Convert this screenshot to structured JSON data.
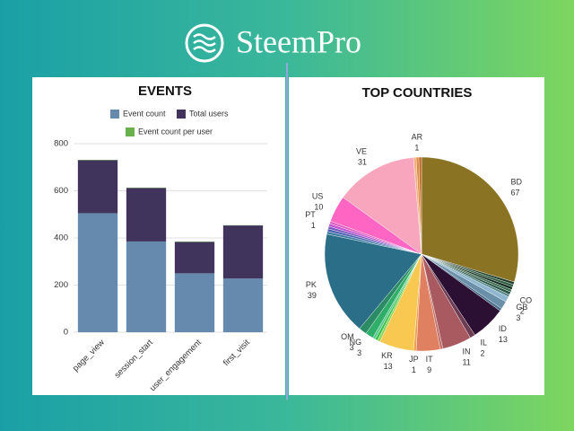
{
  "brand": "SteemPro",
  "chart_data": [
    {
      "type": "bar",
      "stacked": true,
      "title": "EVENTS",
      "categories": [
        "page_view",
        "session_start",
        "user_engagement",
        "first_visit"
      ],
      "series": [
        {
          "name": "Event count",
          "color": "#6689ae",
          "values": [
            505,
            385,
            250,
            228
          ]
        },
        {
          "name": "Total users",
          "color": "#41345c",
          "values": [
            225,
            227,
            133,
            225
          ]
        },
        {
          "name": "Event count per user",
          "color": "#6ab04c",
          "values": [
            1.4,
            1.6,
            1.5,
            1.0
          ]
        }
      ],
      "ylim": [
        0,
        800
      ],
      "yticks": [
        0,
        200,
        400,
        600,
        800
      ],
      "grid": true
    },
    {
      "type": "pie",
      "title": "TOP COUNTRIES",
      "categories": [
        "BD",
        null,
        null,
        null,
        null,
        null,
        null,
        "CO",
        "GB",
        null,
        "ID",
        "IL",
        "IN",
        null,
        "IT",
        "JP",
        "KR",
        null,
        null,
        null,
        "NG",
        "OM",
        "PK",
        null,
        null,
        null,
        "PT",
        null,
        "US",
        "VE",
        null,
        "AR",
        null
      ],
      "values": [
        67,
        1,
        1,
        1,
        1,
        1,
        1,
        2,
        3,
        1,
        13,
        2,
        11,
        1,
        9,
        1,
        13,
        1,
        1,
        1,
        3,
        3,
        39,
        1,
        1,
        1,
        1,
        1,
        10,
        31,
        1,
        1,
        1
      ],
      "colors": [
        "#8a7424",
        "#1f3b2a",
        "#2c5a3e",
        "#0f2a1c",
        "#3d6e52",
        "#245041",
        "#5b8a8a",
        "#8fb8d0",
        "#6a8fa8",
        "#4a6e8a",
        "#2c1034",
        "#6b3c52",
        "#a85a60",
        "#c07068",
        "#df8060",
        "#f0a04a",
        "#f8c850",
        "#8fd45a",
        "#36c24a",
        "#5ac88a",
        "#2fae6a",
        "#2a8b64",
        "#2a6e87",
        "#3a7aa0",
        "#4a5fb0",
        "#7a5ac0",
        "#c050d0",
        "#e060c0",
        "#ff66c4",
        "#f8a6bd",
        "#f0b080",
        "#e08a3a",
        "#c06a2a"
      ]
    }
  ]
}
